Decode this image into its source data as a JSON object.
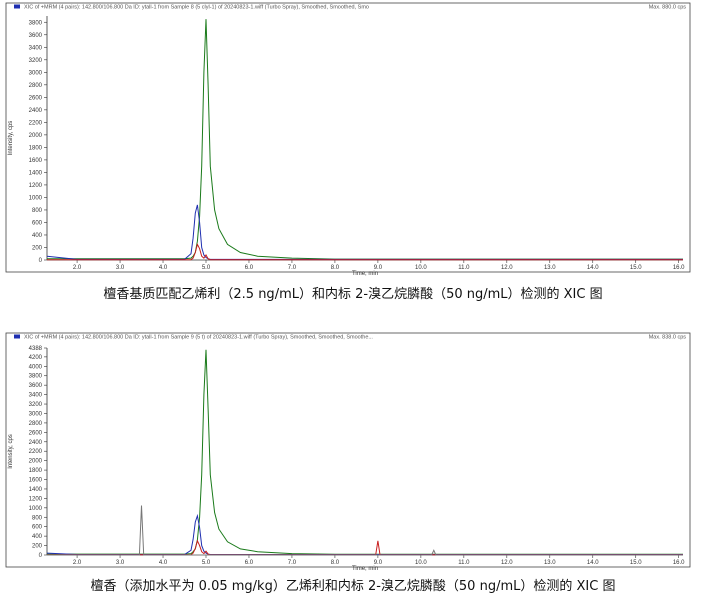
{
  "chart_data": [
    {
      "type": "line",
      "title": "XIC of +MRM (4 pairs): 142.800/106.800 Da ID: ytall-1 from Sample 8 (5 clyl-1) of 20240823-1.wiff (Turbo Spray), Smoothed, Smoothed, Smo",
      "max_label": "Max. 880.0 cps",
      "x_label": "Time, min",
      "y_label": "Intensity, cps",
      "caption": "檀香基质匹配乙烯利（2.5 ng/mL）和内标 2-溴乙烷膦酸（50 ng/mL）检测的 XIC 图",
      "xlim": [
        1.3,
        16.1
      ],
      "xticks": [
        {
          "value": 2,
          "label": "2.0"
        },
        {
          "value": 3,
          "label": "3.0"
        },
        {
          "value": 4,
          "label": "4.0"
        },
        {
          "value": 5,
          "label": "5.0"
        },
        {
          "value": 6,
          "label": "6.0"
        },
        {
          "value": 7,
          "label": "7.0"
        },
        {
          "value": 8,
          "label": "8.0"
        },
        {
          "value": 9,
          "label": "9.0"
        },
        {
          "value": 10,
          "label": "10.0"
        },
        {
          "value": 11,
          "label": "11.0"
        },
        {
          "value": 12,
          "label": "12.0"
        },
        {
          "value": 13,
          "label": "13.0"
        },
        {
          "value": 14,
          "label": "14.0"
        },
        {
          "value": 15,
          "label": "15.0"
        },
        {
          "value": 16,
          "label": "16.0"
        }
      ],
      "ylim": [
        0,
        3900
      ],
      "yticks": [
        0,
        200,
        400,
        600,
        800,
        1000,
        1200,
        1400,
        1600,
        1800,
        2000,
        2200,
        2400,
        2600,
        2800,
        3000,
        3200,
        3400,
        3600,
        3800
      ],
      "x": [
        1.3,
        2,
        3,
        3.45,
        3.5,
        3.55,
        4,
        4.5,
        4.65,
        4.7,
        4.75,
        4.8,
        4.85,
        4.9,
        4.95,
        5.0,
        5.05,
        5.1,
        5.2,
        5.3,
        5.5,
        5.8,
        6.2,
        7,
        8,
        8.95,
        9.0,
        9.05,
        10.25,
        10.3,
        10.35,
        11,
        12,
        13,
        14,
        15,
        16.1
      ],
      "series": [
        {
          "color": "#1a7a1a",
          "values": [
            20,
            20,
            20,
            20,
            20,
            20,
            20,
            20,
            30,
            60,
            120,
            300,
            700,
            1500,
            3000,
            3850,
            2800,
            1500,
            800,
            500,
            250,
            120,
            60,
            30,
            15,
            15,
            15,
            15,
            15,
            15,
            15,
            15,
            15,
            15,
            15,
            15,
            15
          ]
        },
        {
          "color": "#1f2fb0",
          "values": [
            60,
            10,
            10,
            10,
            10,
            10,
            10,
            10,
            100,
            350,
            750,
            880,
            600,
            200,
            80,
            40,
            20,
            10,
            10,
            10,
            10,
            10,
            10,
            10,
            10,
            10,
            10,
            10,
            10,
            10,
            10,
            10,
            10,
            10,
            10,
            10,
            10
          ]
        },
        {
          "color": "#c81e1e",
          "values": [
            5,
            5,
            5,
            5,
            5,
            5,
            5,
            5,
            5,
            30,
            120,
            250,
            180,
            60,
            30,
            80,
            20,
            5,
            5,
            5,
            5,
            5,
            5,
            5,
            5,
            5,
            5,
            5,
            5,
            5,
            5,
            5,
            5,
            5,
            5,
            5,
            5
          ]
        }
      ]
    },
    {
      "type": "line",
      "title": "XIC of +MRM (4 pairs): 142.800/106.800 Da ID: ytall-1 from Sample 9 (5 t) of 20240823-1.wiff (Turbo Spray), Smoothed, Smoothed, Smoothe...",
      "max_label": "Max. 838.0 cps",
      "x_label": "Time, min",
      "y_label": "Intensity, cps",
      "caption": "檀香（添加水平为  0.05 mg/kg）乙烯利和内标 2-溴乙烷膦酸（50 ng/mL）检测的 XIC 图",
      "xlim": [
        1.3,
        16.1
      ],
      "xticks": [
        {
          "value": 2,
          "label": "2.0"
        },
        {
          "value": 3,
          "label": "3.0"
        },
        {
          "value": 4,
          "label": "4.0"
        },
        {
          "value": 5,
          "label": "5.0"
        },
        {
          "value": 6,
          "label": "6.0"
        },
        {
          "value": 7,
          "label": "7.0"
        },
        {
          "value": 8,
          "label": "8.0"
        },
        {
          "value": 9,
          "label": "9.0"
        },
        {
          "value": 10,
          "label": "10.0"
        },
        {
          "value": 11,
          "label": "11.0"
        },
        {
          "value": 12,
          "label": "12.0"
        },
        {
          "value": 13,
          "label": "13.0"
        },
        {
          "value": 14,
          "label": "14.0"
        },
        {
          "value": 15,
          "label": "15.0"
        },
        {
          "value": 16,
          "label": "16.0"
        }
      ],
      "ylim": [
        0,
        4388
      ],
      "yticks": [
        0,
        200,
        400,
        600,
        800,
        1000,
        1200,
        1400,
        1600,
        1800,
        2000,
        2200,
        2400,
        2600,
        2800,
        3000,
        3200,
        3400,
        3600,
        3800,
        4000,
        4200,
        4388
      ],
      "x": [
        1.3,
        2,
        3,
        3.45,
        3.5,
        3.55,
        4,
        4.5,
        4.65,
        4.7,
        4.75,
        4.8,
        4.85,
        4.9,
        4.95,
        5.0,
        5.05,
        5.1,
        5.2,
        5.3,
        5.5,
        5.8,
        6.2,
        7,
        8,
        8.95,
        9.0,
        9.05,
        10.25,
        10.3,
        10.35,
        11,
        12,
        13,
        14,
        15,
        16.1
      ],
      "series": [
        {
          "color": "#1a7a1a",
          "values": [
            20,
            20,
            20,
            20,
            20,
            20,
            20,
            20,
            30,
            70,
            130,
            320,
            800,
            1700,
            3400,
            4350,
            3100,
            1700,
            900,
            550,
            280,
            130,
            70,
            30,
            15,
            15,
            15,
            15,
            15,
            15,
            15,
            15,
            15,
            15,
            15,
            15,
            15
          ]
        },
        {
          "color": "#1f2fb0",
          "values": [
            40,
            10,
            10,
            10,
            10,
            10,
            10,
            10,
            100,
            330,
            700,
            830,
            580,
            200,
            80,
            40,
            20,
            10,
            10,
            10,
            10,
            10,
            10,
            10,
            10,
            10,
            10,
            10,
            10,
            10,
            10,
            10,
            10,
            10,
            10,
            10,
            10
          ]
        },
        {
          "color": "#c81e1e",
          "values": [
            5,
            5,
            5,
            5,
            5,
            5,
            5,
            5,
            5,
            40,
            140,
            300,
            200,
            70,
            30,
            80,
            20,
            5,
            5,
            5,
            5,
            5,
            5,
            5,
            5,
            5,
            300,
            5,
            5,
            5,
            5,
            5,
            5,
            5,
            5,
            5,
            5
          ]
        },
        {
          "color": "#777777",
          "values": [
            0,
            0,
            0,
            0,
            1050,
            0,
            0,
            0,
            0,
            0,
            0,
            0,
            0,
            0,
            0,
            0,
            0,
            0,
            0,
            0,
            0,
            0,
            0,
            0,
            0,
            0,
            0,
            0,
            0,
            100,
            0,
            0,
            0,
            0,
            0,
            0,
            0
          ]
        }
      ]
    }
  ]
}
